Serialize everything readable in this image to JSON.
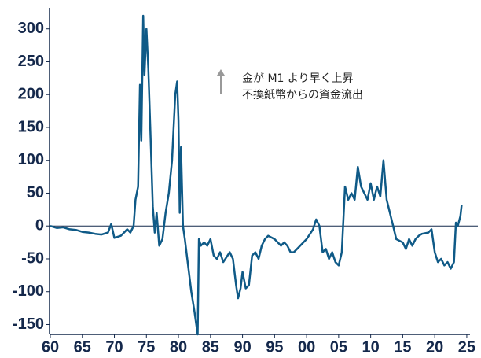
{
  "chart_data": {
    "type": "line",
    "annotation": [
      "金が M1 より早く上昇",
      "不換紙幣からの資金流出"
    ],
    "series": [
      {
        "color": "#0f5a87",
        "x": [
          1960,
          1961,
          1962,
          1963,
          1964,
          1965,
          1966,
          1967,
          1968,
          1969,
          1969.5,
          1970,
          1971,
          1971.5,
          1972,
          1972.5,
          1973,
          1973.3,
          1973.7,
          1974,
          1974.2,
          1974.5,
          1974.7,
          1975,
          1975.3,
          1975.6,
          1976,
          1976.3,
          1976.6,
          1977,
          1977.5,
          1978,
          1978.5,
          1979,
          1979.5,
          1979.8,
          1980,
          1980.2,
          1980.4,
          1980.7,
          1981,
          1981.5,
          1982,
          1982.5,
          1983,
          1983.2,
          1983.5,
          1984,
          1984.5,
          1985,
          1985.5,
          1986,
          1986.5,
          1987,
          1988,
          1988.5,
          1989,
          1989.3,
          1989.7,
          1990,
          1990.5,
          1991,
          1991.5,
          1992,
          1992.5,
          1993,
          1993.5,
          1994,
          1995,
          1996,
          1996.5,
          1997,
          1997.5,
          1998,
          1999,
          2000,
          2001,
          2001.5,
          2002,
          2002.5,
          2003,
          2003.5,
          2004,
          2004.5,
          2005,
          2005.5,
          2006,
          2006.5,
          2007,
          2007.5,
          2008,
          2008.5,
          2009,
          2009.5,
          2010,
          2010.5,
          2011,
          2011.5,
          2012,
          2012.5,
          2013,
          2013.5,
          2014,
          2015,
          2015.5,
          2016,
          2016.5,
          2017,
          2017.5,
          2018,
          2019,
          2019.5,
          2020,
          2020.5,
          2021,
          2021.5,
          2022,
          2022.5,
          2023,
          2023.3,
          2023.6,
          2024,
          2024.2
        ],
        "values": [
          0,
          -3,
          -2,
          -5,
          -6,
          -9,
          -10,
          -12,
          -13,
          -10,
          3,
          -18,
          -15,
          -10,
          -5,
          -10,
          0,
          40,
          60,
          215,
          130,
          320,
          230,
          300,
          240,
          150,
          30,
          -10,
          20,
          -30,
          -20,
          20,
          50,
          100,
          200,
          220,
          160,
          20,
          120,
          0,
          -20,
          -60,
          -100,
          -130,
          -165,
          -20,
          -30,
          -25,
          -30,
          -20,
          -45,
          -50,
          -40,
          -55,
          -40,
          -50,
          -90,
          -110,
          -95,
          -70,
          -95,
          -90,
          -45,
          -40,
          -50,
          -30,
          -20,
          -15,
          -20,
          -30,
          -25,
          -30,
          -40,
          -40,
          -30,
          -20,
          -5,
          10,
          0,
          -40,
          -35,
          -50,
          -40,
          -55,
          -60,
          -40,
          60,
          40,
          50,
          40,
          90,
          60,
          50,
          40,
          65,
          40,
          60,
          45,
          100,
          40,
          20,
          0,
          -20,
          -25,
          -35,
          -20,
          -30,
          -20,
          -15,
          -12,
          -10,
          -5,
          -40,
          -55,
          -50,
          -60,
          -55,
          -65,
          -55,
          5,
          0,
          15,
          32
        ]
      }
    ],
    "xlim": [
      1960,
      2025.5
    ],
    "ylim": [
      -165,
      332
    ],
    "xticks": [
      {
        "value": 1960,
        "label": "60"
      },
      {
        "value": 1965,
        "label": "65"
      },
      {
        "value": 1970,
        "label": "70"
      },
      {
        "value": 1975,
        "label": "75"
      },
      {
        "value": 1980,
        "label": "80"
      },
      {
        "value": 1985,
        "label": "85"
      },
      {
        "value": 1990,
        "label": "90"
      },
      {
        "value": 1995,
        "label": "95"
      },
      {
        "value": 2000,
        "label": "00"
      },
      {
        "value": 2005,
        "label": "05"
      },
      {
        "value": 2010,
        "label": "10"
      },
      {
        "value": 2015,
        "label": "15"
      },
      {
        "value": 2020,
        "label": "20"
      },
      {
        "value": 2025,
        "label": "25"
      }
    ],
    "yticks": [
      -150,
      -100,
      -50,
      0,
      50,
      100,
      150,
      200,
      250,
      300
    ]
  }
}
